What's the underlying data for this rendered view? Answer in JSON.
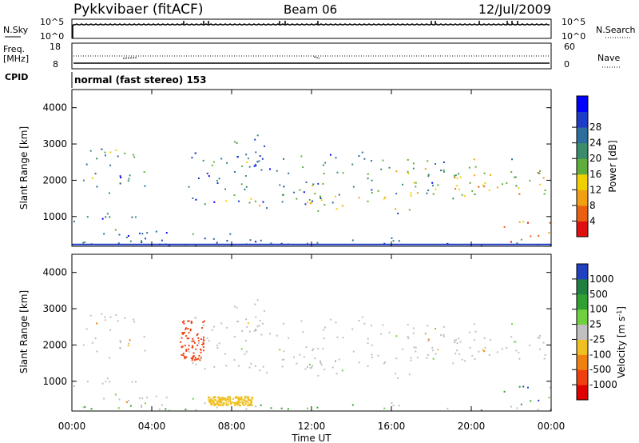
{
  "header": {
    "station": "Pykkvibaer (fitACF)",
    "beam": "Beam 06",
    "date": "12/Jul/2009"
  },
  "noise_panel": {
    "left_label": "N.Sky",
    "right_label": "N.Search",
    "left_ticks": [
      "10^5",
      "10^0"
    ],
    "right_ticks": [
      "10^5",
      "10^0"
    ]
  },
  "freq_panel": {
    "left_label_1": "Freq.",
    "left_label_2": "[MHz]",
    "right_label": "Nave",
    "left_ticks": [
      "18",
      "8"
    ],
    "right_ticks": [
      "60",
      "0"
    ]
  },
  "cpid": {
    "label": "CPID",
    "value": "normal (fast stereo) 153"
  },
  "chart_data": [
    {
      "type": "heatmap",
      "parameter": "Power",
      "ylabel": "Slant Range [km]",
      "ylim": [
        180,
        4500
      ],
      "yticks": [
        "1000",
        "2000",
        "3000",
        "4000"
      ],
      "xlim_hours": [
        0,
        24
      ],
      "colorbar": {
        "label": "Power [dB]",
        "ticks": [
          "4",
          "8",
          "12",
          "16",
          "20",
          "24",
          "28"
        ],
        "colors": [
          "#0000ff",
          "#1e3cc8",
          "#2e6e9c",
          "#3a8c6a",
          "#5fae3c",
          "#f0d000",
          "#f0a010",
          "#e86010",
          "#e01010"
        ]
      }
    },
    {
      "type": "heatmap",
      "parameter": "Velocity",
      "ylabel": "Slant Range [km]",
      "ylim": [
        180,
        4500
      ],
      "yticks": [
        "1000",
        "2000",
        "3000",
        "4000"
      ],
      "xlim_hours": [
        0,
        24
      ],
      "colorbar": {
        "label_main": "Velocity",
        "label_unit": "[m s",
        "label_exp": "-1",
        "label_close": "]",
        "ticks": [
          "1000",
          "500",
          "100",
          "25",
          "-25",
          "-100",
          "-500",
          "-1000"
        ],
        "colors": [
          "#2040c0",
          "#208040",
          "#30a030",
          "#70d040",
          "#c0c0c0",
          "#f0c020",
          "#f08010",
          "#f04010",
          "#e00000"
        ]
      }
    }
  ],
  "x_axis": {
    "ticks": [
      "00:00",
      "04:00",
      "08:00",
      "12:00",
      "16:00",
      "20:00",
      "00:00"
    ],
    "label": "Time UT"
  }
}
